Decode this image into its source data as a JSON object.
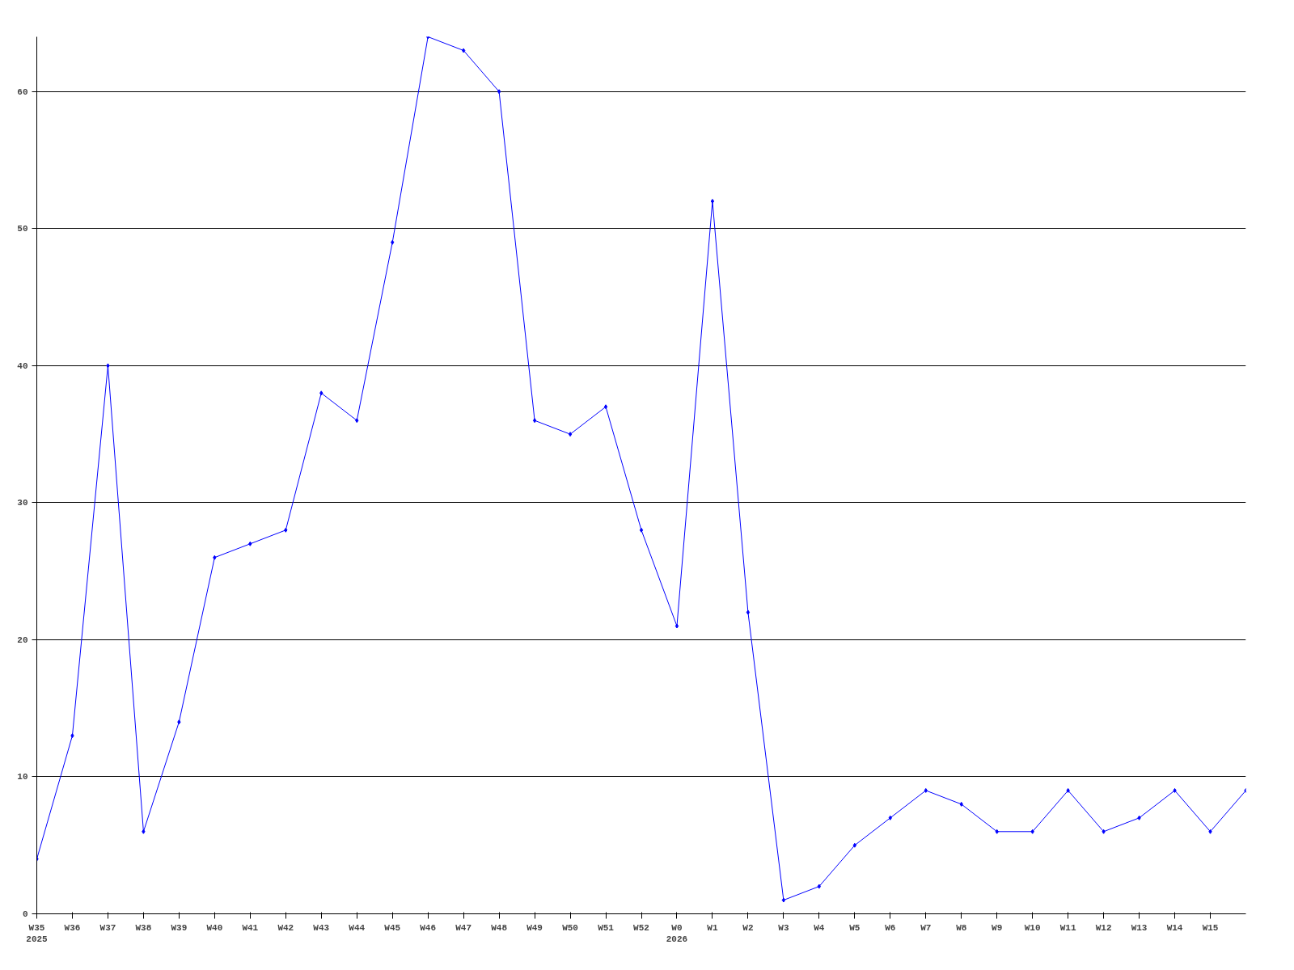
{
  "chart_data": {
    "type": "line",
    "categories": [
      "W35\n2025",
      "W36",
      "W37",
      "W38",
      "W39",
      "W40",
      "W41",
      "W42",
      "W43",
      "W44",
      "W45",
      "W46",
      "W47",
      "W48",
      "W49",
      "W50",
      "W51",
      "W52",
      "W0\n2026",
      "W1",
      "W2",
      "W3",
      "W4",
      "W5",
      "W6",
      "W7",
      "W8",
      "W9",
      "W10",
      "W11",
      "W12",
      "W13",
      "W14",
      "W15",
      null
    ],
    "series": [
      {
        "color": "#0000ff",
        "values": [
          4,
          13,
          40,
          6,
          14,
          26,
          27,
          28,
          38,
          36,
          49,
          64,
          63,
          60,
          36,
          35,
          37,
          28,
          21,
          52,
          22,
          1,
          2,
          5,
          7,
          9,
          8,
          6,
          6,
          9,
          6,
          7,
          9,
          6,
          9
        ]
      }
    ],
    "ylim": [
      0,
      64
    ],
    "yticks": [
      0,
      10,
      20,
      30,
      40,
      50,
      60
    ],
    "grid": "y",
    "marker": "diamond",
    "line_style": "solid"
  }
}
